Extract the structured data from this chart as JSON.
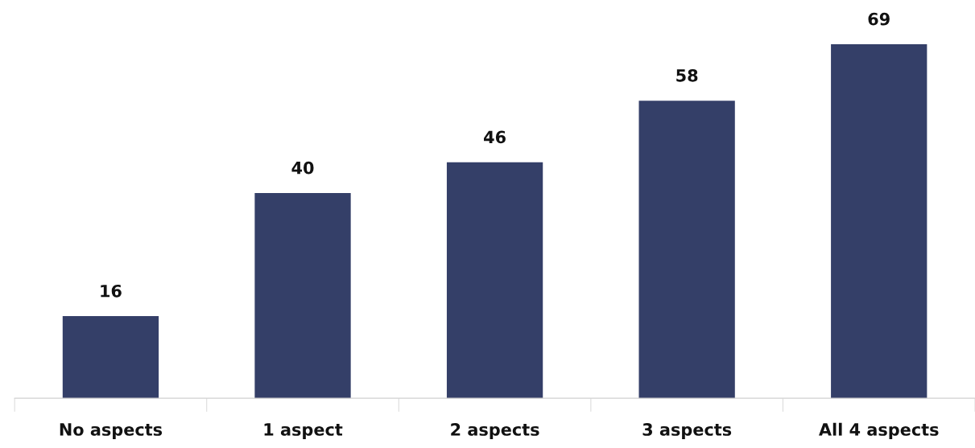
{
  "chart_data": {
    "type": "bar",
    "categories": [
      "No aspects",
      "1 aspect",
      "2 aspects",
      "3 aspects",
      "All 4 aspects"
    ],
    "values": [
      16,
      40,
      46,
      58,
      69
    ],
    "color": "#343f68",
    "data_labels": true,
    "grid": false,
    "legend": false
  }
}
